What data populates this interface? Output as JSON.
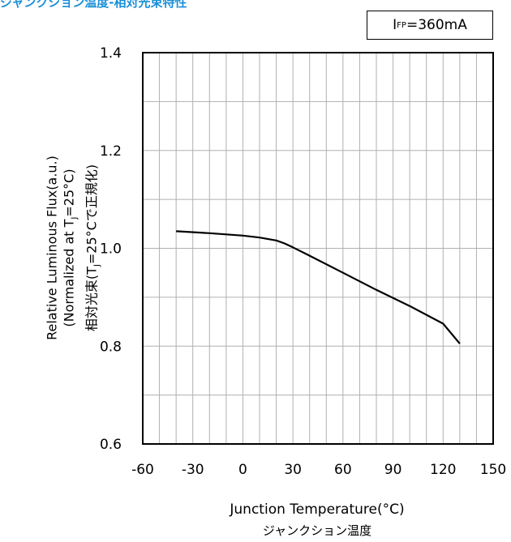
{
  "title": "ジャンクション温度-相対光束特性",
  "condition": {
    "prefix": "I",
    "sub": "FP",
    "value": "=360mA"
  },
  "chart_data": {
    "type": "line",
    "xlabel": "Junction Temperature(°C)",
    "xlabel_jp": "ジャンクション温度",
    "ylabel_lines": [
      "Relative Luminous Flux(a.u.)",
      "(Normalized at T",
      "J",
      "=25°C)",
      "相対光束(T",
      "J",
      "=25°C で正規化)"
    ],
    "ylabel": {
      "line1": "Relative Luminous Flux(a.u.)",
      "line2_a": "(Normalized at T",
      "line2_sub": "J",
      "line2_b": "=25°C)",
      "line3_a": "相対光束(T",
      "line3_sub": "J",
      "line3_b": "=25°Cで正規化)"
    },
    "xlim": [
      -60,
      150
    ],
    "ylim": [
      0.6,
      1.4
    ],
    "x_ticks": [
      -60,
      -30,
      0,
      30,
      60,
      90,
      120,
      150
    ],
    "x_tick_labels": [
      "-60",
      "-30",
      "0",
      "30",
      "60",
      "90",
      "120",
      "150"
    ],
    "y_ticks": [
      0.6,
      0.8,
      1.0,
      1.2,
      1.4
    ],
    "y_tick_labels": [
      "0.6",
      "0.8",
      "1.0",
      "1.2",
      "1.4"
    ],
    "grid": true,
    "series": [
      {
        "x": [
          -40,
          -20,
          0,
          10,
          20,
          25,
          30,
          40,
          60,
          80,
          100,
          120,
          130
        ],
        "y": [
          1.035,
          1.031,
          1.026,
          1.022,
          1.016,
          1.01,
          1.002,
          0.985,
          0.95,
          0.915,
          0.882,
          0.846,
          0.805
        ],
        "color": "#000000"
      }
    ]
  }
}
